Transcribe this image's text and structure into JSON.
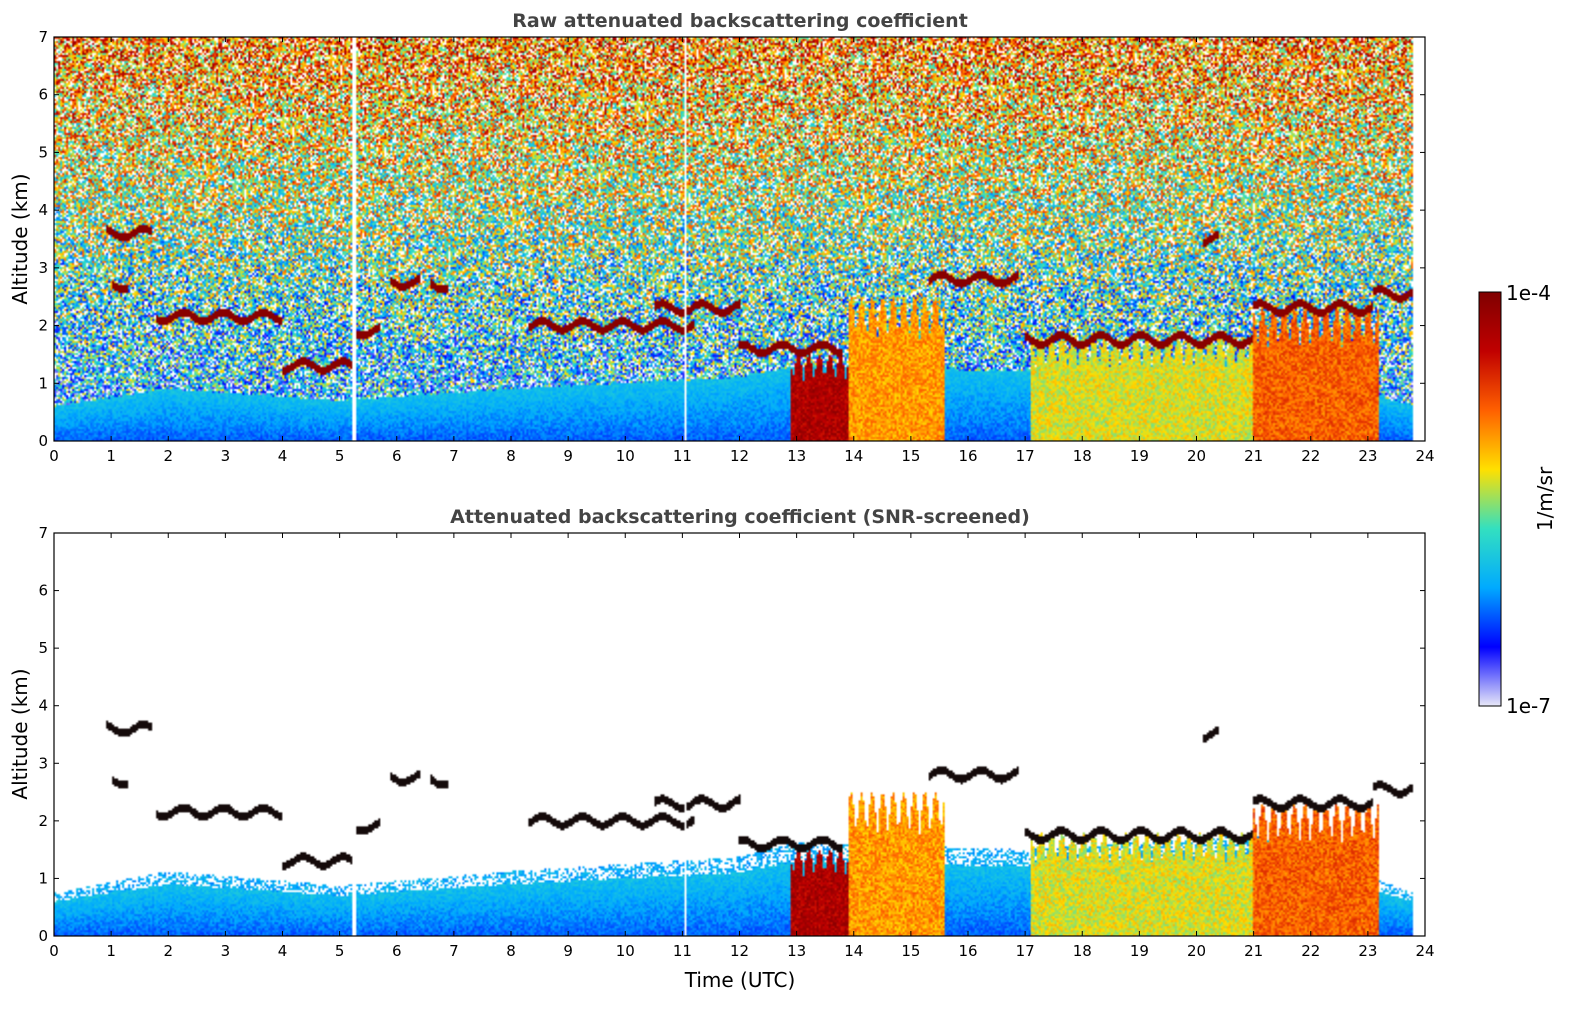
{
  "chart_data": [
    {
      "type": "heatmap",
      "title": "Raw attenuated backscattering coefficient",
      "xlabel": "",
      "ylabel": "Altitude (km)",
      "xlim": [
        0,
        24
      ],
      "ylim": [
        0,
        7
      ],
      "x_ticks": [
        "0",
        "1",
        "2",
        "3",
        "4",
        "5",
        "6",
        "7",
        "8",
        "9",
        "10",
        "11",
        "12",
        "13",
        "14",
        "15",
        "16",
        "17",
        "18",
        "19",
        "20",
        "21",
        "22",
        "23",
        "24"
      ],
      "y_ticks": [
        "0",
        "1",
        "2",
        "3",
        "4",
        "5",
        "6",
        "7"
      ],
      "data_end_time": 23.8,
      "gaps": [
        5.25,
        11.05
      ],
      "boundary_layer_top_km": [
        [
          0,
          0.6
        ],
        [
          2,
          0.9
        ],
        [
          5,
          0.7
        ],
        [
          8,
          0.9
        ],
        [
          12,
          1.1
        ],
        [
          13,
          1.3
        ],
        [
          17,
          1.2
        ],
        [
          21,
          1.4
        ],
        [
          23.8,
          0.6
        ]
      ],
      "cloud_layers": [
        {
          "t0": 0.9,
          "t1": 1.7,
          "alt": 3.6
        },
        {
          "t0": 1.0,
          "t1": 1.3,
          "alt": 2.7
        },
        {
          "t0": 1.8,
          "t1": 4.0,
          "alt": 2.15
        },
        {
          "t0": 4.0,
          "t1": 5.3,
          "alt": 1.3
        },
        {
          "t0": 5.3,
          "t1": 5.7,
          "alt": 1.9
        },
        {
          "t0": 5.9,
          "t1": 6.4,
          "alt": 2.75
        },
        {
          "t0": 6.6,
          "t1": 6.9,
          "alt": 2.7
        },
        {
          "t0": 8.3,
          "t1": 11.2,
          "alt": 2.0
        },
        {
          "t0": 10.5,
          "t1": 12.0,
          "alt": 2.3
        },
        {
          "t0": 12.0,
          "t1": 13.8,
          "alt": 1.6
        },
        {
          "t0": 15.3,
          "t1": 16.9,
          "alt": 2.8
        },
        {
          "t0": 17.0,
          "t1": 21.0,
          "alt": 1.75
        },
        {
          "t0": 20.1,
          "t1": 20.4,
          "alt": 3.5
        },
        {
          "t0": 21.0,
          "t1": 23.1,
          "alt": 2.3
        },
        {
          "t0": 23.1,
          "t1": 23.8,
          "alt": 2.55
        }
      ],
      "plumes": [
        {
          "t0": 12.9,
          "t1": 13.9,
          "top": 1.5,
          "level": 0.9
        },
        {
          "t0": 13.9,
          "t1": 15.6,
          "top": 2.5,
          "level": 0.65
        },
        {
          "t0": 17.1,
          "t1": 21.0,
          "top": 1.8,
          "level": 0.55
        },
        {
          "t0": 21.0,
          "t1": 23.2,
          "top": 2.3,
          "level": 0.72
        }
      ]
    },
    {
      "type": "heatmap",
      "title": "Attenuated backscattering coefficient (SNR-screened)",
      "xlabel": "Time (UTC)",
      "ylabel": "Altitude (km)",
      "xlim": [
        0,
        24
      ],
      "ylim": [
        0,
        7
      ],
      "x_ticks": [
        "0",
        "1",
        "2",
        "3",
        "4",
        "5",
        "6",
        "7",
        "8",
        "9",
        "10",
        "11",
        "12",
        "13",
        "14",
        "15",
        "16",
        "17",
        "18",
        "19",
        "20",
        "21",
        "22",
        "23",
        "24"
      ],
      "y_ticks": [
        "0",
        "1",
        "2",
        "3",
        "4",
        "5",
        "6",
        "7"
      ],
      "screened": true
    }
  ],
  "colorbar": {
    "top_label": "1e-4",
    "bottom_label": "1e-7",
    "unit": "1/m/sr",
    "colormap": [
      "#e8e8f8",
      "#0000ff",
      "#00aaff",
      "#33e0c0",
      "#ffe000",
      "#ff6000",
      "#c00000",
      "#800000"
    ]
  }
}
